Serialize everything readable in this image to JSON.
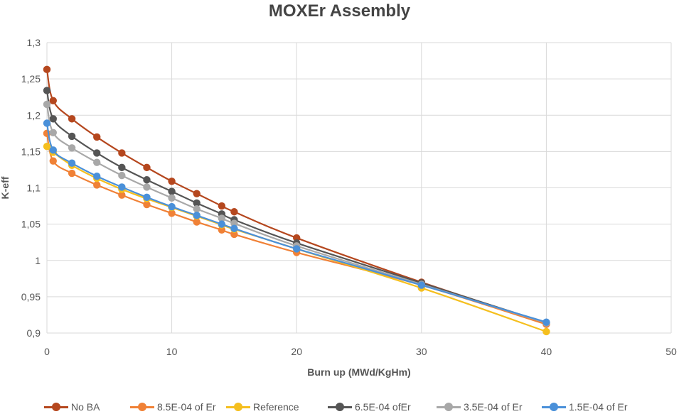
{
  "chart_data": {
    "type": "line",
    "title": "MOXEr Assembly",
    "xlabel": "Burn up (MWd/KgHm)",
    "ylabel": "K-eff",
    "xlim": [
      0,
      50
    ],
    "ylim": [
      0.9,
      1.3
    ],
    "x_ticks": [
      "0",
      "10",
      "20",
      "30",
      "40",
      "50"
    ],
    "y_ticks": [
      "0,9",
      "0,95",
      "1",
      "1,05",
      "1,1",
      "1,15",
      "1,2",
      "1,25",
      "1,3"
    ],
    "x_tick_values": [
      0,
      10,
      20,
      30,
      40,
      50
    ],
    "y_tick_values": [
      0.9,
      0.95,
      1.0,
      1.05,
      1.1,
      1.15,
      1.2,
      1.25,
      1.3
    ],
    "grid": true,
    "legend_position": "bottom",
    "x": [
      0,
      0.5,
      2,
      4,
      6,
      8,
      10,
      12,
      14,
      15,
      20,
      30,
      40
    ],
    "series": [
      {
        "name": "No BA",
        "color": "#b5471e",
        "values": [
          1.263,
          1.22,
          1.195,
          1.17,
          1.148,
          1.128,
          1.109,
          1.092,
          1.075,
          1.067,
          1.031,
          0.97,
          0.913
        ]
      },
      {
        "name": "8.5E-04 of Er",
        "color": "#f08136",
        "values": [
          1.175,
          1.137,
          1.12,
          1.104,
          1.09,
          1.077,
          1.065,
          1.053,
          1.042,
          1.036,
          1.011,
          0.966,
          0.912
        ]
      },
      {
        "name": "Reference",
        "color": "#f5bf1e",
        "values": [
          1.157,
          1.149,
          1.131,
          1.113,
          1.098,
          1.085,
          1.073,
          1.061,
          1.049,
          1.043,
          1.016,
          0.962,
          0.902
        ]
      },
      {
        "name": "6.5E-04 ofEr",
        "color": "#555555",
        "values": [
          1.234,
          1.195,
          1.171,
          1.148,
          1.128,
          1.111,
          1.095,
          1.079,
          1.064,
          1.056,
          1.024,
          0.969,
          0.914
        ]
      },
      {
        "name": "3.5E-04 of Er",
        "color": "#a8a8a8",
        "values": [
          1.215,
          1.176,
          1.155,
          1.135,
          1.117,
          1.101,
          1.086,
          1.071,
          1.058,
          1.051,
          1.02,
          0.967,
          0.914
        ]
      },
      {
        "name": "1.5E-04 of Er",
        "color": "#4a90d9",
        "values": [
          1.189,
          1.152,
          1.134,
          1.116,
          1.101,
          1.087,
          1.074,
          1.062,
          1.05,
          1.044,
          1.016,
          0.966,
          0.915
        ]
      }
    ]
  }
}
